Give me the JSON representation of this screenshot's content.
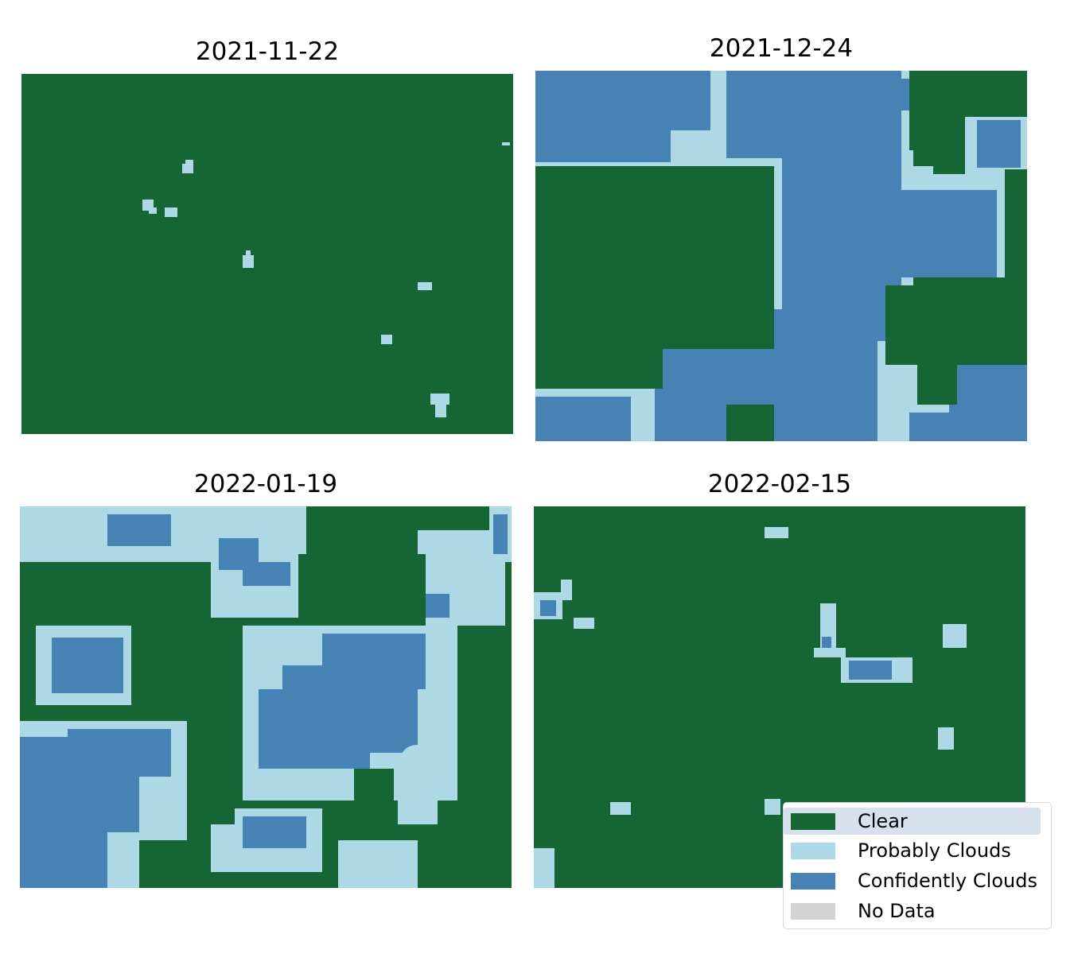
{
  "chart_data": {
    "type": "heatmap",
    "legend": {
      "placement": "lower-right",
      "entries": [
        {
          "label": "Clear",
          "color": "#156535"
        },
        {
          "label": "Probably Clouds",
          "color": "#add8e6"
        },
        {
          "label": "Confidently Clouds",
          "color": "#4682b4"
        },
        {
          "label": "No Data",
          "color": "#d3d3d3"
        }
      ]
    },
    "panels": [
      {
        "title": "2021-11-22",
        "clear_fraction": 0.98,
        "probably_clouds_fraction": 0.02,
        "confidently_clouds_fraction": 0.0
      },
      {
        "title": "2021-12-24",
        "clear_fraction": 0.38,
        "probably_clouds_fraction": 0.18,
        "confidently_clouds_fraction": 0.44
      },
      {
        "title": "2022-01-19",
        "clear_fraction": 0.58,
        "probably_clouds_fraction": 0.2,
        "confidently_clouds_fraction": 0.22
      },
      {
        "title": "2022-02-15",
        "clear_fraction": 0.96,
        "probably_clouds_fraction": 0.03,
        "confidently_clouds_fraction": 0.01
      }
    ]
  }
}
